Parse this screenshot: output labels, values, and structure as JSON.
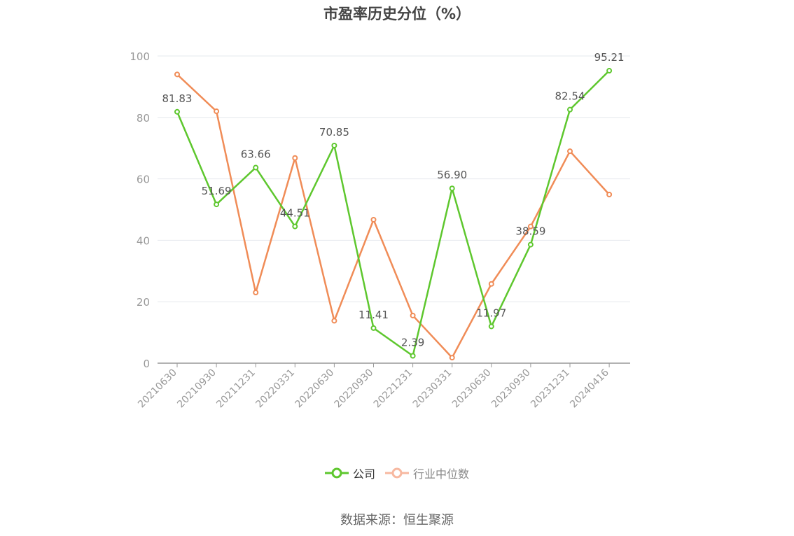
{
  "chart_data": {
    "type": "line",
    "title": "市盈率历史分位（%）",
    "categories": [
      "20210630",
      "20210930",
      "20211231",
      "20220331",
      "20220630",
      "20220930",
      "20221231",
      "20230331",
      "20230630",
      "20230930",
      "20231231",
      "20240416"
    ],
    "ylim": [
      0,
      100
    ],
    "yticks": [
      0,
      20,
      40,
      60,
      80,
      100
    ],
    "grid": true,
    "legend_position": "bottom",
    "series": [
      {
        "name": "公司",
        "color": "#5ec72e",
        "values": [
          81.83,
          51.69,
          63.66,
          44.51,
          70.85,
          11.41,
          2.39,
          56.9,
          11.97,
          38.59,
          82.54,
          95.21
        ],
        "labels": [
          "81.83",
          "51.69",
          "63.66",
          "44.51",
          "70.85",
          "11.41",
          "2.39",
          "56.90",
          "11.97",
          "38.59",
          "82.54",
          "95.21"
        ]
      },
      {
        "name": "行业中位数",
        "color": "#f08c57",
        "legend_color": "#f7b8a0",
        "values": [
          94.0,
          82.0,
          23.0,
          66.8,
          13.8,
          46.7,
          15.5,
          1.8,
          25.8,
          44.5,
          69.0,
          54.9
        ]
      }
    ]
  },
  "source": "数据来源：恒生聚源"
}
